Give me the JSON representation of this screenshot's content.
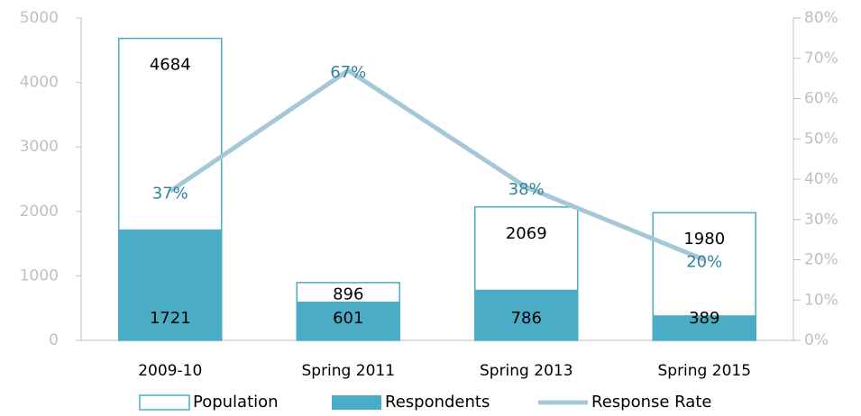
{
  "chart_data": {
    "type": "bar",
    "categories": [
      "2009-10",
      "Spring 2011",
      "Spring 2013",
      "Spring 2015"
    ],
    "series": [
      {
        "name": "Population",
        "color": "#ffffff",
        "values": [
          4684,
          896,
          2069,
          1980
        ]
      },
      {
        "name": "Respondents",
        "color": "#4bacc6",
        "values": [
          1721,
          601,
          786,
          389
        ]
      },
      {
        "name": "Response Rate",
        "type": "line",
        "axis": "y2",
        "color": "#a5c8d8",
        "values": [
          37,
          67,
          38,
          20
        ],
        "value_labels": [
          "37%",
          "67%",
          "38%",
          "20%"
        ]
      }
    ],
    "ylim": [
      0,
      5000
    ],
    "yticks": [
      0,
      1000,
      2000,
      3000,
      4000,
      5000
    ],
    "y2lim": [
      0,
      80
    ],
    "y2ticks": [
      {
        "value": 0,
        "label": "0%"
      },
      {
        "value": 10,
        "label": "10%"
      },
      {
        "value": 20,
        "label": "20%"
      },
      {
        "value": 30,
        "label": "30%"
      },
      {
        "value": 40,
        "label": "40%"
      },
      {
        "value": 50,
        "label": "50%"
      },
      {
        "value": 60,
        "label": "60%"
      },
      {
        "value": 70,
        "label": "70%"
      },
      {
        "value": 80,
        "label": "80%"
      }
    ],
    "legend": "bottom"
  }
}
